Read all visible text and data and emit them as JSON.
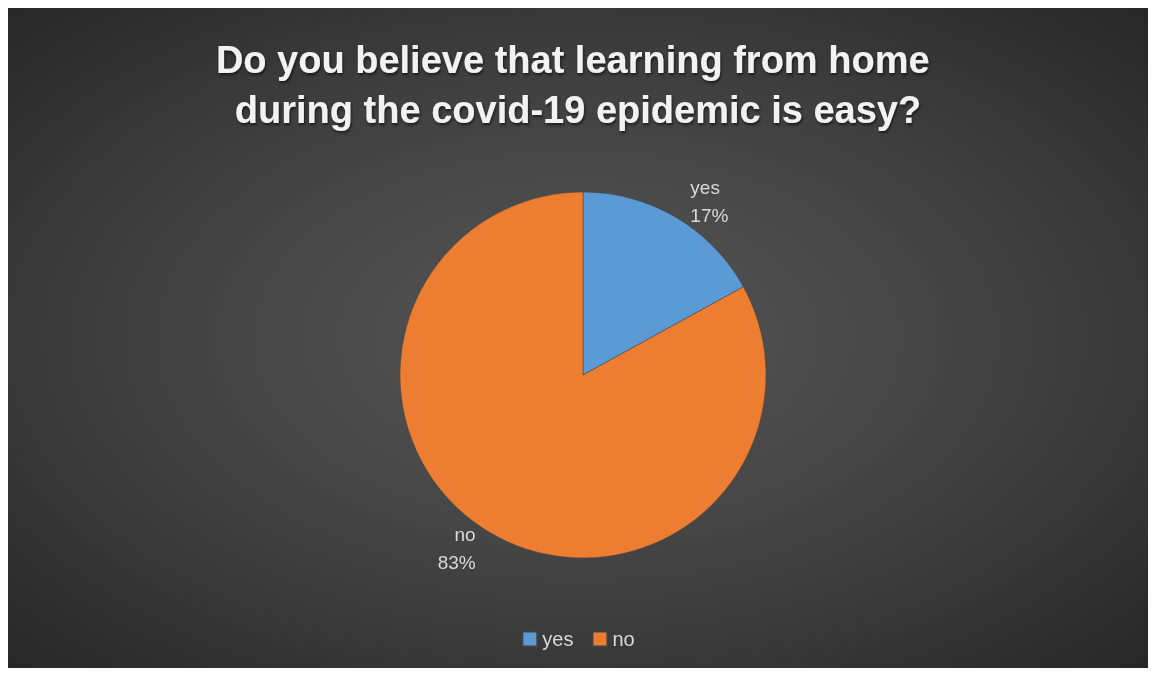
{
  "chart_data": {
    "type": "pie",
    "title": "Do you believe that learning from home during the covid-19 epidemic is easy?",
    "categories": [
      "yes",
      "no"
    ],
    "values": [
      17,
      83
    ],
    "colors": [
      "#5b9bd5",
      "#ed7d31"
    ],
    "value_labels": [
      "17%",
      "83%"
    ],
    "legend": "bottom"
  }
}
